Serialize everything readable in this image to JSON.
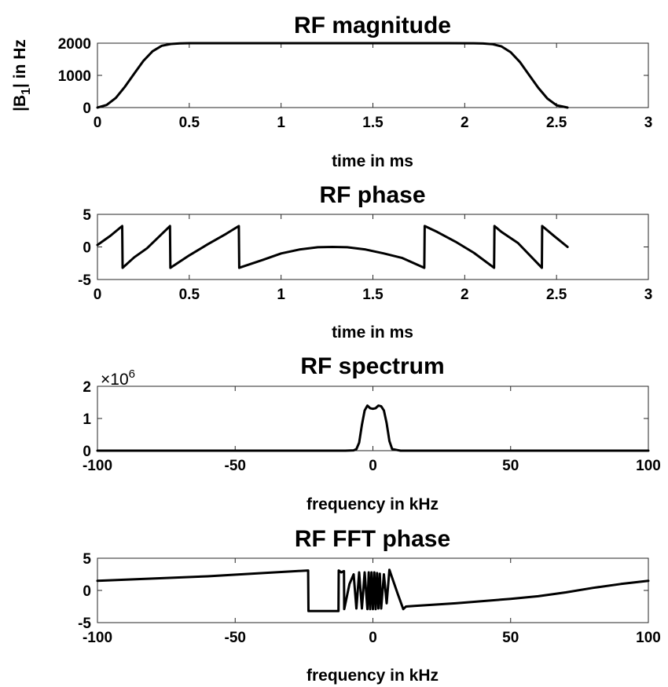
{
  "chart_data": [
    {
      "type": "line",
      "title": "RF magnitude",
      "xlabel": "time in ms",
      "ylabel": "|B1| in Hz",
      "ylabel_main": "|B",
      "ylabel_sub": "1",
      "ylabel_rest": "| in Hz",
      "xlim": [
        0,
        3
      ],
      "ylim": [
        0,
        2000
      ],
      "xticks": [
        0,
        0.5,
        1,
        1.5,
        2,
        2.5,
        3
      ],
      "xtick_labels": [
        "0",
        "0.5",
        "1",
        "1.5",
        "2",
        "2.5",
        "3"
      ],
      "yticks": [
        0,
        1000,
        2000
      ],
      "ytick_labels": [
        "0",
        "1000",
        "2000"
      ],
      "grid": false,
      "series": [
        {
          "x": [
            0,
            0.05,
            0.1,
            0.15,
            0.2,
            0.25,
            0.3,
            0.35,
            0.4,
            0.45,
            0.5,
            0.6,
            0.8,
            1.0,
            1.28,
            1.6,
            1.9,
            2.05,
            2.1,
            2.15,
            2.2,
            2.25,
            2.3,
            2.35,
            2.4,
            2.45,
            2.5,
            2.56
          ],
          "y": [
            0,
            80,
            300,
            650,
            1050,
            1450,
            1750,
            1920,
            1975,
            1995,
            2000,
            2000,
            2000,
            2000,
            2000,
            2000,
            2000,
            1998,
            1990,
            1970,
            1900,
            1720,
            1420,
            1020,
            620,
            280,
            70,
            0
          ]
        }
      ]
    },
    {
      "type": "line",
      "title": "RF phase",
      "xlabel": "time in ms",
      "ylabel": "",
      "xlim": [
        0,
        3
      ],
      "ylim": [
        -5,
        5
      ],
      "xticks": [
        0,
        0.5,
        1,
        1.5,
        2,
        2.5,
        3
      ],
      "xtick_labels": [
        "0",
        "0.5",
        "1",
        "1.5",
        "2",
        "2.5",
        "3"
      ],
      "yticks": [
        -5,
        0,
        5
      ],
      "ytick_labels": [
        "-5",
        "0",
        "5"
      ],
      "grid": false,
      "series": [
        {
          "x": [
            0,
            0.07,
            0.135,
            0.137,
            0.2,
            0.27,
            0.395,
            0.397,
            0.5,
            0.6,
            0.7,
            0.77,
            0.772,
            0.9,
            1.0,
            1.1,
            1.2,
            1.28,
            1.36,
            1.46,
            1.56,
            1.66,
            1.78,
            1.782,
            1.85,
            1.95,
            2.05,
            2.16,
            2.162,
            2.2,
            2.29,
            2.42,
            2.422,
            2.49,
            2.56
          ],
          "y": [
            0.3,
            1.7,
            3.2,
            -3.2,
            -1.6,
            -0.2,
            3.2,
            -3.2,
            -1.3,
            0.4,
            2.0,
            3.2,
            -3.2,
            -2.0,
            -1.0,
            -0.4,
            -0.05,
            0,
            -0.05,
            -0.4,
            -1.0,
            -1.7,
            -3.2,
            3.2,
            2.3,
            0.8,
            -0.9,
            -3.2,
            3.2,
            2.3,
            0.6,
            -3.2,
            3.2,
            1.6,
            0
          ]
        }
      ]
    },
    {
      "type": "line",
      "title": "RF spectrum",
      "xlabel": "frequency in kHz",
      "ylabel": "",
      "xlim": [
        -100,
        100
      ],
      "ylim": [
        0,
        2
      ],
      "scale_label": "×10",
      "scale_exponent": "6",
      "xticks": [
        -100,
        -50,
        0,
        50,
        100
      ],
      "xtick_labels": [
        "-100",
        "-50",
        "0",
        "50",
        "100"
      ],
      "yticks": [
        0,
        1,
        2
      ],
      "ytick_labels": [
        "0",
        "1",
        "2"
      ],
      "grid": false,
      "series": [
        {
          "x": [
            -100,
            -20,
            -10,
            -7,
            -6,
            -5,
            -4,
            -3,
            -2,
            -1,
            0,
            1,
            2,
            3,
            4,
            5,
            6,
            7,
            10,
            20,
            100
          ],
          "y": [
            0,
            0,
            0,
            0.01,
            0.05,
            0.25,
            0.8,
            1.25,
            1.4,
            1.32,
            1.3,
            1.32,
            1.4,
            1.38,
            1.25,
            0.85,
            0.3,
            0.05,
            0,
            0,
            0
          ]
        }
      ]
    },
    {
      "type": "line",
      "title": "RF FFT phase",
      "xlabel": "frequency in kHz",
      "ylabel": "",
      "xlim": [
        -100,
        100
      ],
      "ylim": [
        -5,
        5
      ],
      "xticks": [
        -100,
        -50,
        0,
        50,
        100
      ],
      "xtick_labels": [
        "-100",
        "-50",
        "0",
        "50",
        "100"
      ],
      "yticks": [
        -5,
        0,
        5
      ],
      "ytick_labels": [
        "-5",
        "0",
        "5"
      ],
      "grid": false,
      "series": [
        {
          "x": [
            -100,
            -60,
            -40,
            -23.5,
            -23.4,
            -18,
            -12.5,
            -12.4,
            -11.5,
            -10.5,
            -10.4,
            -8.5,
            -7,
            -6,
            -5,
            -4,
            -3,
            -2,
            -1.5,
            -1,
            -0.5,
            0,
            0.5,
            1,
            1.5,
            2,
            2.5,
            3,
            4,
            5,
            6,
            9,
            11,
            12,
            15,
            30,
            50,
            60,
            70,
            80,
            90,
            100
          ],
          "y": [
            1.5,
            2.2,
            2.7,
            3.1,
            -3.2,
            -3.2,
            -3.2,
            3.1,
            2.8,
            3.0,
            -2.9,
            1.0,
            2.5,
            -2.8,
            2.8,
            -2.8,
            2.8,
            -2.9,
            2.8,
            -2.9,
            2.8,
            -2.9,
            2.8,
            -2.9,
            2.7,
            -2.8,
            2.6,
            -2.8,
            2.5,
            -2.0,
            3.2,
            -0.5,
            -2.9,
            -2.5,
            -2.4,
            -2.0,
            -1.3,
            -0.9,
            -0.3,
            0.4,
            1.0,
            1.5
          ]
        }
      ]
    }
  ]
}
